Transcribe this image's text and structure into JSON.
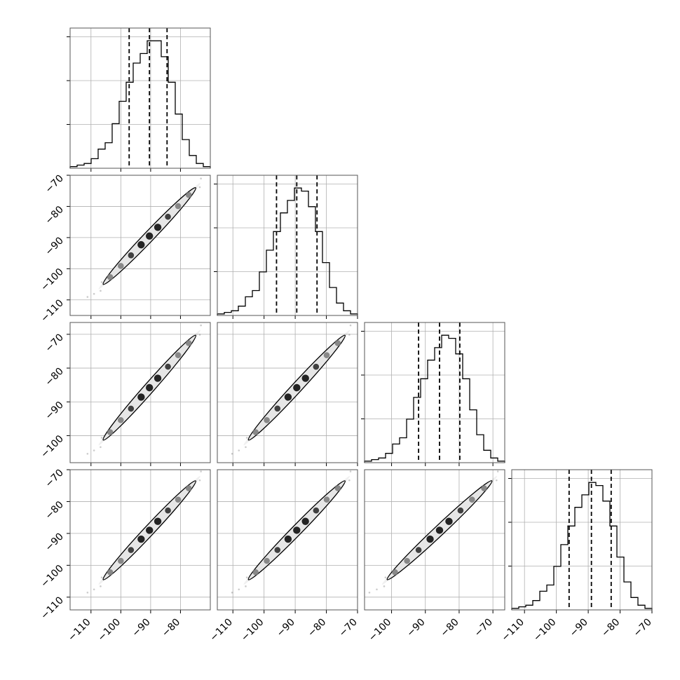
{
  "chart_data": {
    "type": "corner",
    "grid": true,
    "parameters": [
      {
        "name": "",
        "quantiles": [
          -97.2,
          -90.4,
          -84.5
        ],
        "hist_range": [
          -117,
          -70
        ],
        "hist": [
          0.5,
          1,
          1.5,
          3,
          6,
          8,
          14,
          21,
          27,
          33,
          36,
          40,
          40,
          35,
          27,
          17,
          9,
          4,
          1.5,
          0.5
        ]
      },
      {
        "name": "",
        "quantiles": [
          -96.0,
          -89.5,
          -83.0
        ],
        "hist_range": [
          -115,
          -70
        ],
        "hist": [
          0.5,
          1,
          1.5,
          3,
          6,
          8,
          14,
          21,
          27,
          33,
          37,
          41,
          40,
          35,
          27,
          17,
          9,
          4,
          1.5,
          0.5
        ]
      },
      {
        "name": "",
        "quantiles": [
          -92.0,
          -85.8,
          -79.8
        ],
        "hist_range": [
          -108,
          -66.5
        ],
        "hist": [
          0.5,
          1,
          1.5,
          3,
          6,
          8,
          14,
          21,
          27,
          33,
          37,
          41,
          40,
          35,
          27,
          17,
          9,
          4,
          1.5,
          0.5
        ]
      },
      {
        "name": "",
        "quantiles": [
          -96.0,
          -89.0,
          -82.8
        ],
        "hist_range": [
          -114,
          -70
        ],
        "hist": [
          0.5,
          1,
          1.5,
          3,
          6,
          8,
          14,
          21,
          27,
          33,
          37,
          41,
          40,
          35,
          27,
          17,
          9,
          4,
          1.5,
          0.5
        ]
      }
    ],
    "axis_ranges": [
      [
        -117,
        -70
      ],
      [
        -115,
        -70
      ],
      [
        -108,
        -66.5
      ],
      [
        -114,
        -70
      ]
    ],
    "ticks": [
      [
        -110,
        -100,
        -90,
        -80
      ],
      [
        -110,
        -100,
        -90,
        -80,
        -70
      ],
      [
        -100,
        -90,
        -80,
        -70
      ],
      [
        -110,
        -100,
        -90,
        -80,
        -70
      ]
    ],
    "y_ticks": {
      "1": [
        -110,
        -100,
        -90,
        -80,
        -70
      ],
      "2": [
        -100,
        -90,
        -80,
        -70
      ],
      "3": [
        -110,
        -100,
        -90,
        -80,
        -70
      ]
    },
    "histogram_style": "step",
    "quantile_lines": "dashed",
    "contours": "2d density with inner ellipse contour",
    "correlation": 0.98,
    "colors": {
      "line": "#000000",
      "grid": "#b0b0b0",
      "frame": "#000000"
    }
  }
}
